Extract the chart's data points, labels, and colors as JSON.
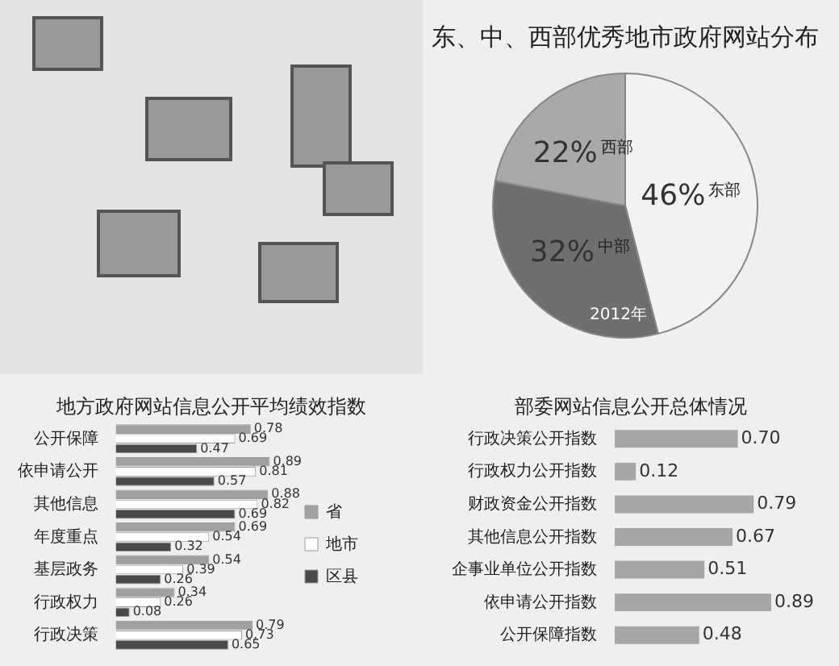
{
  "chart_data": [
    {
      "type": "pie",
      "title": "东、中、西部优秀地市政府网站分布",
      "categories": [
        "东部",
        "中部",
        "西部"
      ],
      "values": [
        46,
        32,
        22
      ],
      "value_labels": [
        "46%",
        "32%",
        "22%"
      ],
      "colors": [
        "#f2f2f2",
        "#6e6e6e",
        "#a9a9a9"
      ],
      "annotations": [
        "2012年"
      ]
    },
    {
      "type": "bar",
      "title": "地方政府网站信息公开平均绩效指数",
      "orientation": "horizontal",
      "categories": [
        "公开保障",
        "依申请公开",
        "其他信息",
        "年度重点",
        "基层政务",
        "行政权力",
        "行政决策"
      ],
      "series": [
        {
          "name": "省",
          "color": "#a0a0a0",
          "values": [
            0.78,
            0.89,
            0.88,
            0.69,
            0.54,
            0.34,
            0.79
          ]
        },
        {
          "name": "地市",
          "color": "#ffffff",
          "values": [
            0.69,
            0.81,
            0.82,
            0.54,
            0.39,
            0.26,
            0.73
          ]
        },
        {
          "name": "区县",
          "color": "#4a4a4a",
          "values": [
            0.47,
            0.57,
            0.69,
            0.32,
            0.26,
            0.08,
            0.65
          ]
        }
      ],
      "data_labels": true,
      "legend": "right"
    },
    {
      "type": "bar",
      "title": "部委网站信息公开总体情况",
      "orientation": "horizontal",
      "categories": [
        "行政决策公开指数",
        "行政权力公开指数",
        "财政资金公开指数",
        "其他信息公开指数",
        "企事业单位公开指数",
        "依申请公开指数",
        "公开保障指数"
      ],
      "values": [
        0.7,
        0.12,
        0.79,
        0.67,
        0.51,
        0.89,
        0.48
      ],
      "value_labels": [
        "0.70",
        "0.12",
        "0.79",
        "0.67",
        "0.51",
        "0.89",
        "0.48"
      ],
      "color": "#a6a6a6"
    }
  ]
}
